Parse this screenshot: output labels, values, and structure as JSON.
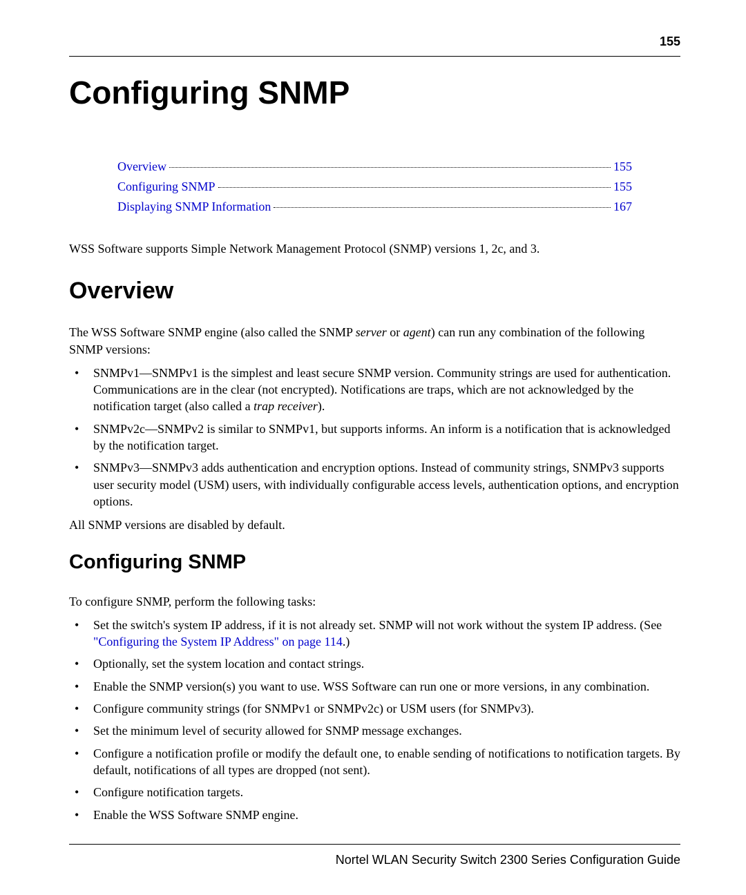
{
  "page_number": "155",
  "main_title": "Configuring SNMP",
  "toc": [
    {
      "label": "Overview",
      "page": "155"
    },
    {
      "label": "Configuring SNMP",
      "page": "155"
    },
    {
      "label": "Displaying SNMP Information",
      "page": "167"
    }
  ],
  "intro_text": "WSS Software supports Simple Network Management Protocol (SNMP) versions 1, 2c, and 3.",
  "overview": {
    "heading": "Overview",
    "intro_pre": "The WSS Software SNMP engine (also called the SNMP ",
    "server_word": "server",
    "or_word": " or ",
    "agent_word": "agent",
    "intro_post": ") can run any combination of the following SNMP versions:",
    "bullets": [
      {
        "pre": "SNMPv1—SNMPv1 is the simplest and least secure SNMP version. Community strings are used for authentication. Communications are in the clear (not encrypted). Notifications are traps, which are not acknowledged by the notification target (also called a ",
        "italic": "trap receiver",
        "post": ")."
      },
      {
        "pre": "SNMPv2c—SNMPv2 is similar to SNMPv1, but supports informs. An inform is a notification that is acknowledged by the notification target.",
        "italic": "",
        "post": ""
      },
      {
        "pre": "SNMPv3—SNMPv3 adds authentication and encryption options. Instead of community strings, SNMPv3 supports user security model (USM) users, with individually configurable access levels, authentication options, and encryption options.",
        "italic": "",
        "post": ""
      }
    ],
    "closing": "All SNMP versions are disabled by default."
  },
  "config": {
    "heading": "Configuring SNMP",
    "intro": "To configure SNMP, perform the following tasks:",
    "bullets": [
      {
        "pre": "Set the switch's system IP address, if it is not already set. SNMP will not work without the system IP address. (See ",
        "link": "\"Configuring the System IP Address\" on page 114",
        "post": ".)"
      },
      {
        "pre": "Optionally, set the system location and contact strings.",
        "link": "",
        "post": ""
      },
      {
        "pre": "Enable the SNMP version(s) you want to use. WSS Software can run one or more versions, in any combination.",
        "link": "",
        "post": ""
      },
      {
        "pre": "Configure community strings (for SNMPv1 or SNMPv2c) or USM users (for SNMPv3).",
        "link": "",
        "post": ""
      },
      {
        "pre": "Set the minimum level of security allowed for SNMP message exchanges.",
        "link": "",
        "post": ""
      },
      {
        "pre": "Configure a notification profile or modify the default one, to enable sending of notifications to notification targets. By default, notifications of all types are dropped (not sent).",
        "link": "",
        "post": ""
      },
      {
        "pre": "Configure notification targets.",
        "link": "",
        "post": ""
      },
      {
        "pre": "Enable the WSS Software SNMP engine.",
        "link": "",
        "post": ""
      }
    ]
  },
  "footer": "Nortel WLAN Security Switch 2300 Series Configuration Guide",
  "colors": {
    "link_color": "#0000cc",
    "text_color": "#000000",
    "background": "#ffffff"
  },
  "fonts": {
    "heading_family": "Arial, Helvetica, sans-serif",
    "body_family": "Times New Roman, Times, serif",
    "main_title_size": 46,
    "section_heading_size": 34,
    "sub_heading_size": 29,
    "body_size": 18
  }
}
